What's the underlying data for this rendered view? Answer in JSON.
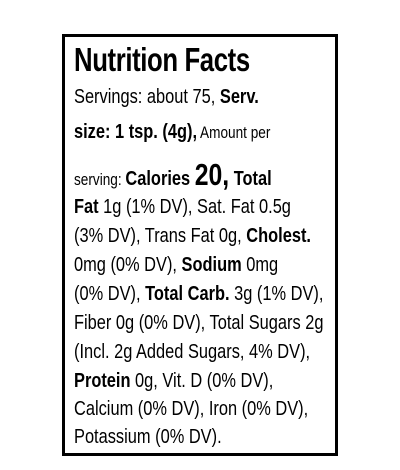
{
  "label": {
    "title": "Nutrition Facts",
    "text": [
      "Servings: about 75, ",
      "Serv.",
      "size: 1 tsp. (4g),",
      " Amount per",
      "serving: ",
      "Calories ",
      "20,",
      " Total",
      "Fat",
      " 1g (1% DV), Sat. Fat 0.5g",
      "(3% DV), Trans Fat 0g, ",
      "Cholest.",
      "0mg (0% DV), ",
      "Sodium",
      " 0mg",
      "(0% DV), ",
      "Total Carb.",
      " 3g (1% DV),",
      "Fiber 0g (0% DV), Total Sugars 2g",
      "(Incl. 2g Added Sugars, 4% DV),",
      "Protein",
      " 0g, Vit. D (0% DV),",
      "Calcium (0% DV), Iron (0% DV),",
      "Potassium (0% DV)."
    ]
  }
}
